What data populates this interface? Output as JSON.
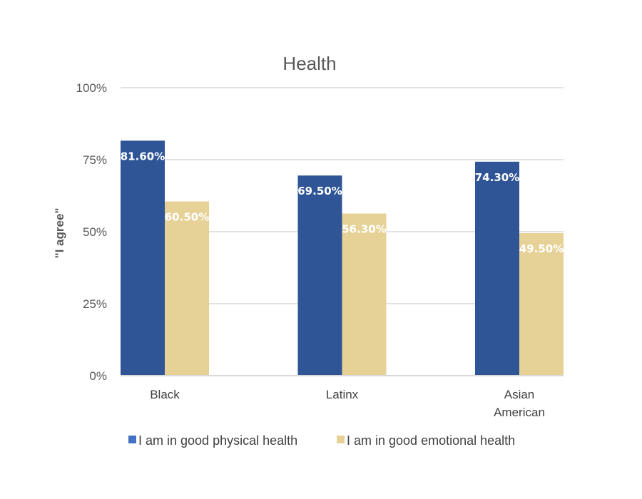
{
  "chart_data": {
    "type": "bar",
    "title": "Health",
    "xlabel": "",
    "ylabel": "\"I agree\"",
    "ylim": [
      0,
      100
    ],
    "yticks": [
      0,
      25,
      50,
      75,
      100
    ],
    "ytick_labels": [
      "0%",
      "25%",
      "50%",
      "75%",
      "100%"
    ],
    "grid": true,
    "legend_position": "bottom",
    "categories": [
      [
        "Black"
      ],
      [
        "Latinx"
      ],
      [
        "Asian",
        "American"
      ]
    ],
    "category_names": [
      "Black",
      "Latinx",
      "Asian American"
    ],
    "series": [
      {
        "name": "I am in good physical health",
        "color": "#2F5597",
        "legend_color": "#4472C4",
        "values": [
          81.6,
          69.5,
          74.3
        ],
        "labels": [
          "81.60%",
          "69.50%",
          "74.30%"
        ]
      },
      {
        "name": "I am in good emotional health",
        "color": "#E6D296",
        "legend_color": "#E6D296",
        "values": [
          60.5,
          56.3,
          49.5
        ],
        "labels": [
          "60.50%",
          "56.30%",
          "49.50%"
        ]
      }
    ]
  }
}
